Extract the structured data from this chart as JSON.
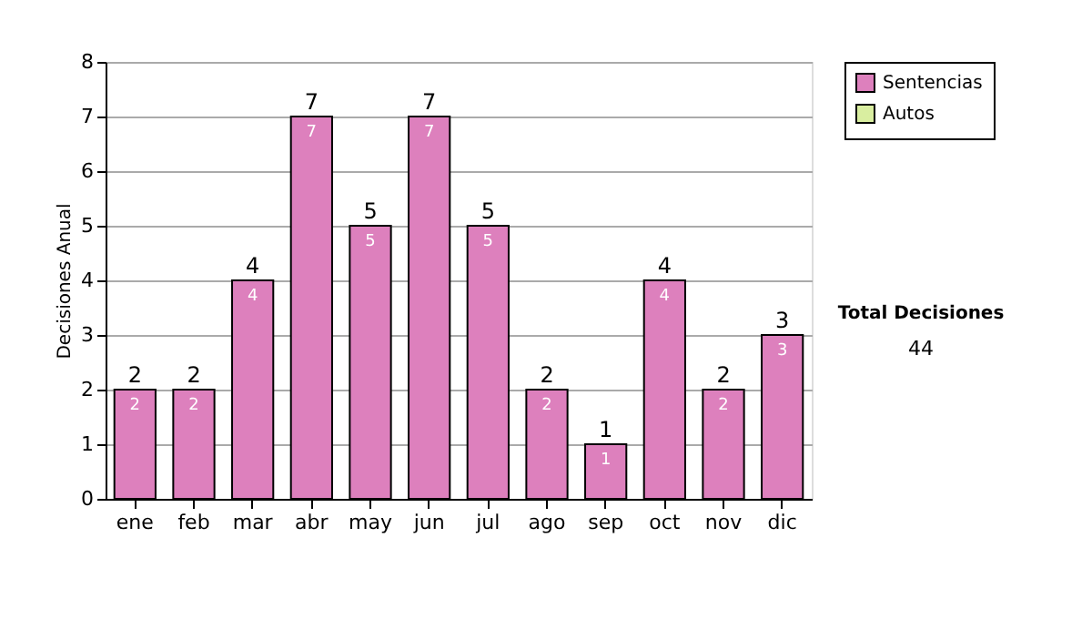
{
  "chart_data": {
    "type": "bar",
    "stacked": true,
    "ylabel": "Decisiones Anual",
    "categories": [
      "ene",
      "feb",
      "mar",
      "abr",
      "may",
      "jun",
      "jul",
      "ago",
      "sep",
      "oct",
      "nov",
      "dic"
    ],
    "series": [
      {
        "name": "Sentencias",
        "color": "#dd80bd",
        "values": [
          2,
          2,
          4,
          7,
          5,
          7,
          5,
          2,
          1,
          4,
          2,
          3
        ],
        "value_labels": [
          "2",
          "2",
          "4",
          "7",
          "5",
          "7",
          "5",
          "2",
          "1",
          "4",
          "2",
          "3"
        ]
      },
      {
        "name": "Autos",
        "color": "#d9eea0",
        "values": [
          null,
          null,
          null,
          null,
          null,
          null,
          null,
          null,
          null,
          null,
          null,
          null
        ]
      }
    ],
    "totals": [
      "2",
      "2",
      "4",
      "7",
      "5",
      "7",
      "5",
      "2",
      "1",
      "4",
      "2",
      "3"
    ],
    "ylim": [
      0,
      8
    ],
    "yticks": [
      0,
      1,
      2,
      3,
      4,
      5,
      6,
      7,
      8
    ],
    "grid": "y",
    "legend": "right",
    "annotations": [
      "Total Decisiones",
      "44"
    ]
  }
}
